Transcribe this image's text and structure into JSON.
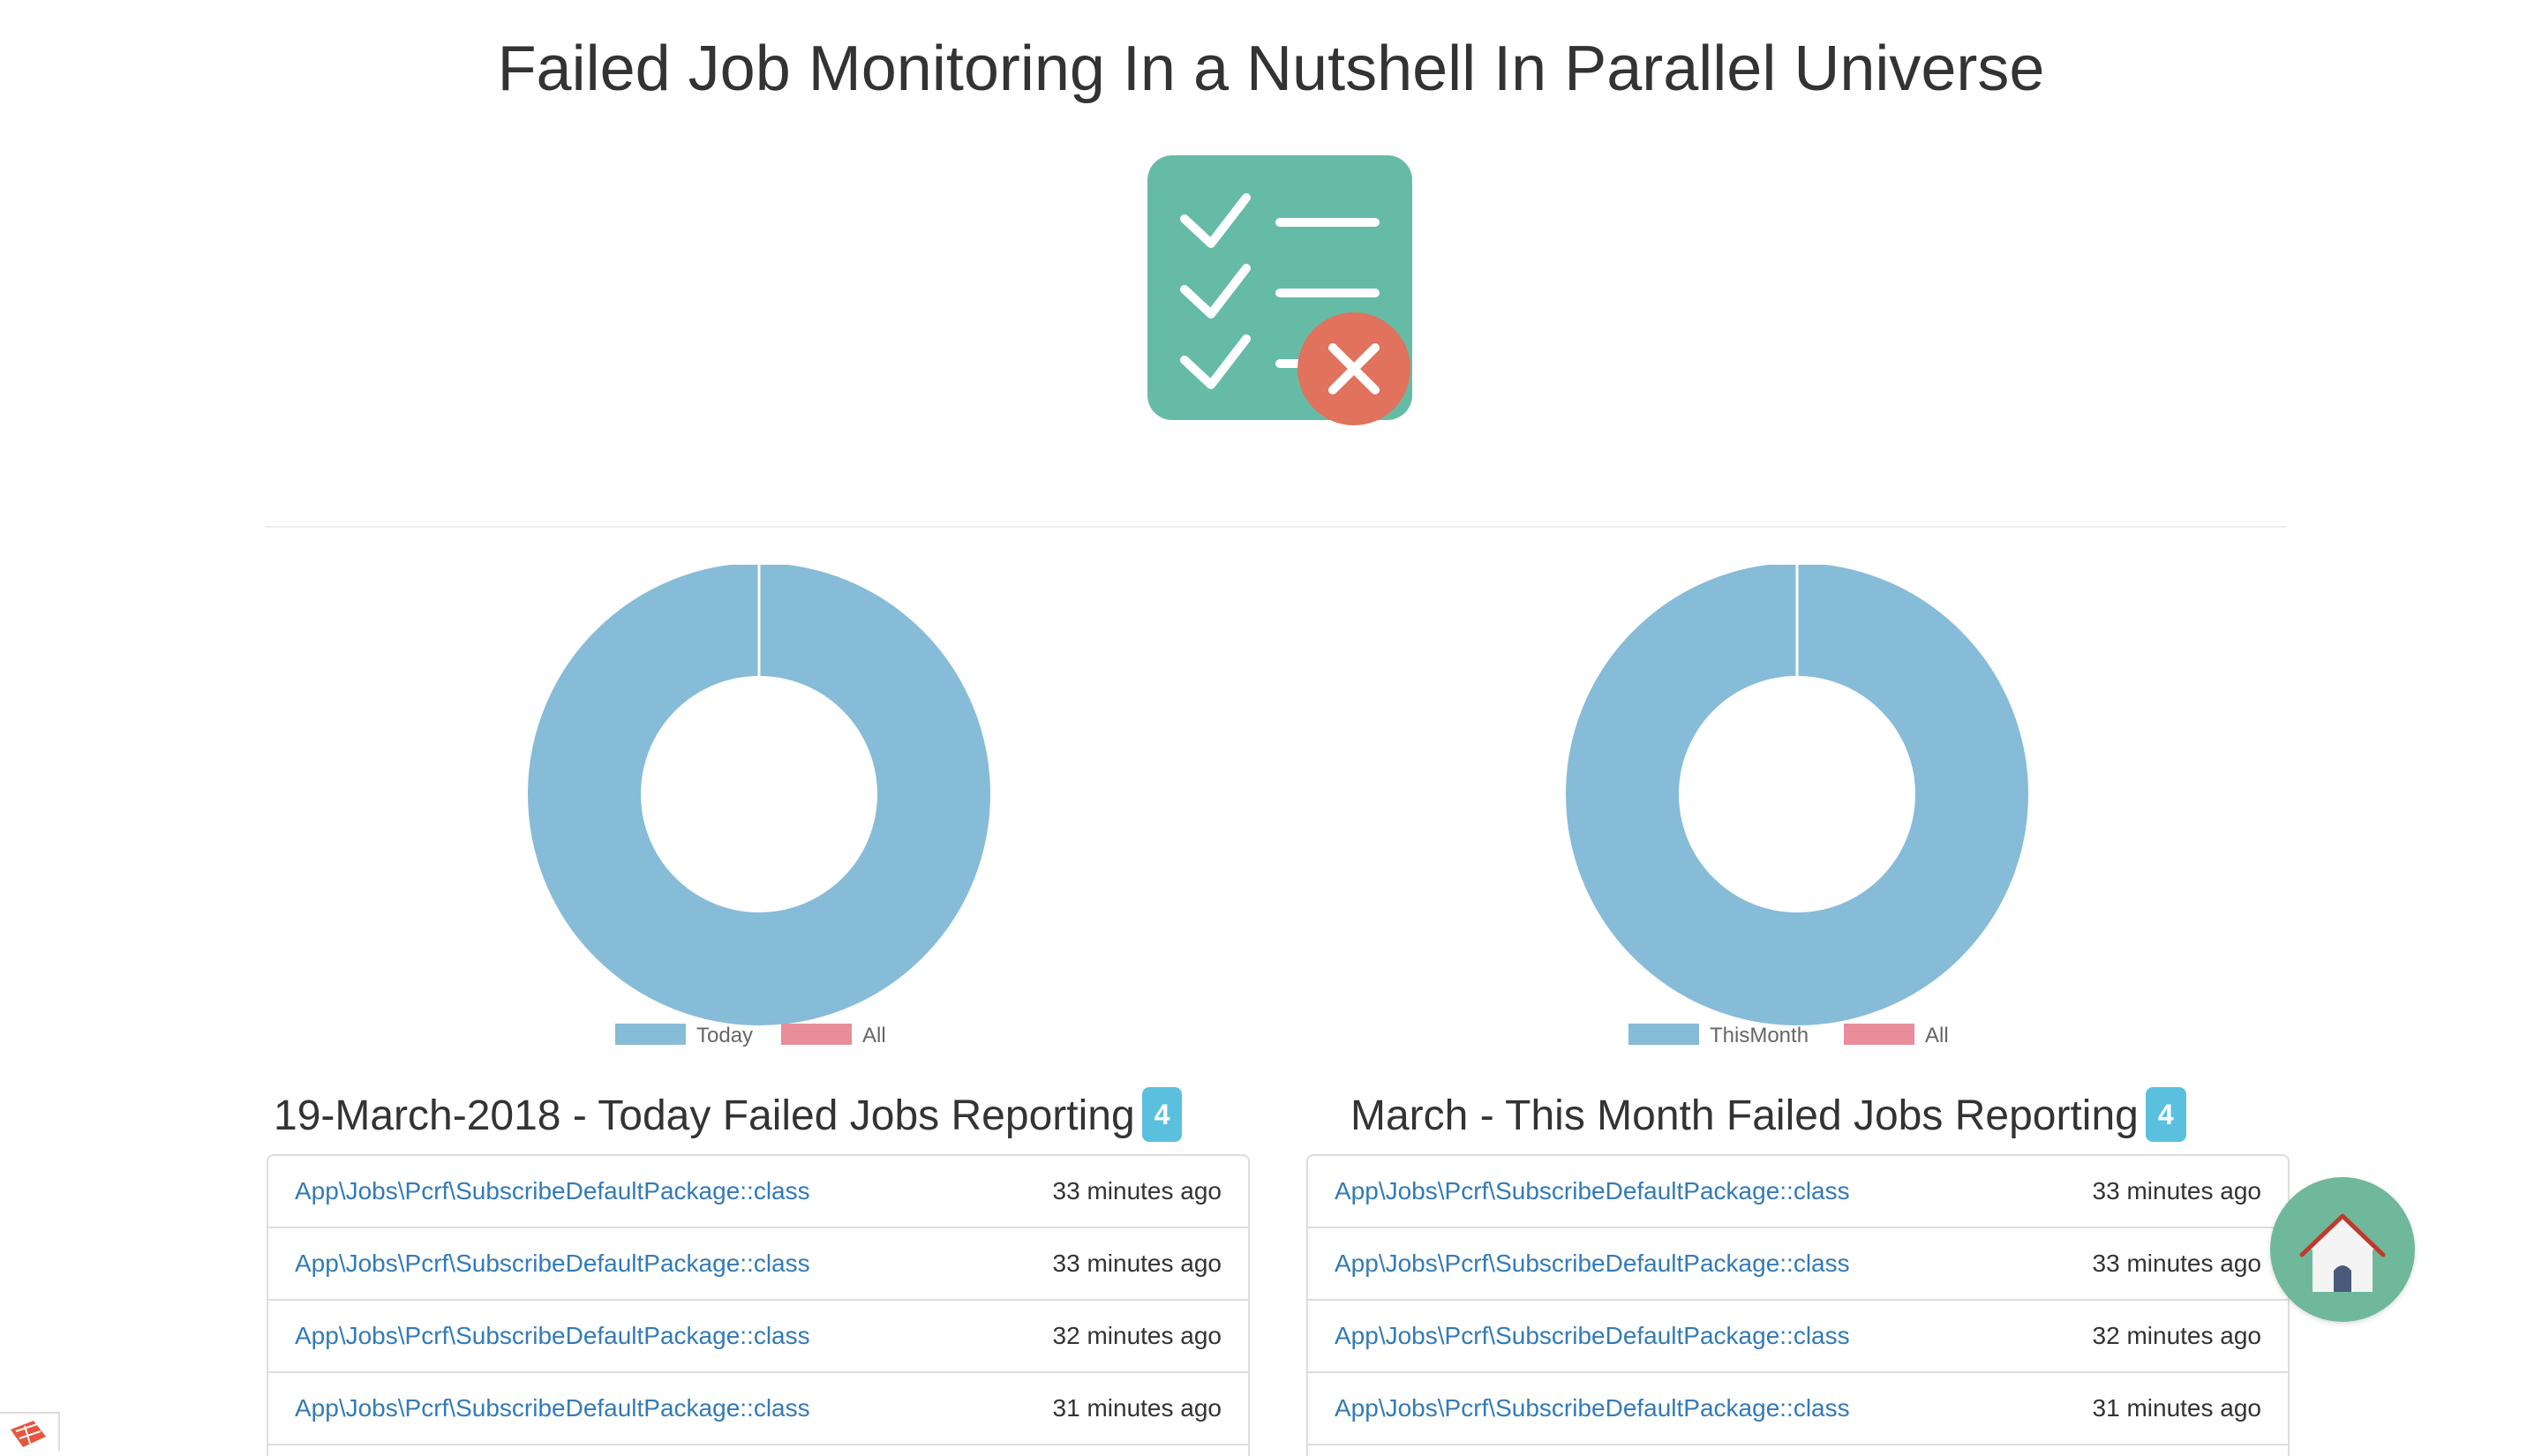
{
  "page": {
    "title": "Failed Job Monitoring In a Nutshell In Parallel Universe"
  },
  "logo": {
    "icon": "checklist-failed-icon",
    "colors": {
      "board": "#66bba7",
      "error": "#e1725d"
    }
  },
  "charts": [
    {
      "legend": [
        "Today",
        "All"
      ],
      "legend_colors": [
        "#86bcd8",
        "#e88d99"
      ]
    },
    {
      "legend": [
        "ThisMonth",
        "All"
      ],
      "legend_colors": [
        "#86bcd8",
        "#e88d99"
      ]
    }
  ],
  "chart_data": [
    {
      "type": "pie",
      "categories": [
        "Today",
        "All"
      ],
      "values": [
        4,
        0
      ],
      "hole": true
    },
    {
      "type": "pie",
      "categories": [
        "ThisMonth",
        "All"
      ],
      "values": [
        4,
        0
      ],
      "hole": true
    }
  ],
  "panels": {
    "today": {
      "title": "19-March-2018 - Today Failed Jobs Reporting",
      "count": "4",
      "items": [
        {
          "job": "App\\Jobs\\Pcrf\\SubscribeDefaultPackage::class",
          "time": "33 minutes ago"
        },
        {
          "job": "App\\Jobs\\Pcrf\\SubscribeDefaultPackage::class",
          "time": "33 minutes ago"
        },
        {
          "job": "App\\Jobs\\Pcrf\\SubscribeDefaultPackage::class",
          "time": "32 minutes ago"
        },
        {
          "job": "App\\Jobs\\Pcrf\\SubscribeDefaultPackage::class",
          "time": "31 minutes ago"
        }
      ]
    },
    "month": {
      "title": "March - This Month Failed Jobs Reporting",
      "count": "4",
      "items": [
        {
          "job": "App\\Jobs\\Pcrf\\SubscribeDefaultPackage::class",
          "time": "33 minutes ago"
        },
        {
          "job": "App\\Jobs\\Pcrf\\SubscribeDefaultPackage::class",
          "time": "33 minutes ago"
        },
        {
          "job": "App\\Jobs\\Pcrf\\SubscribeDefaultPackage::class",
          "time": "32 minutes ago"
        },
        {
          "job": "App\\Jobs\\Pcrf\\SubscribeDefaultPackage::class",
          "time": "31 minutes ago"
        }
      ]
    }
  },
  "home_button": {
    "icon": "home-icon"
  },
  "debug_bar": {
    "icon": "debugbar-icon"
  }
}
